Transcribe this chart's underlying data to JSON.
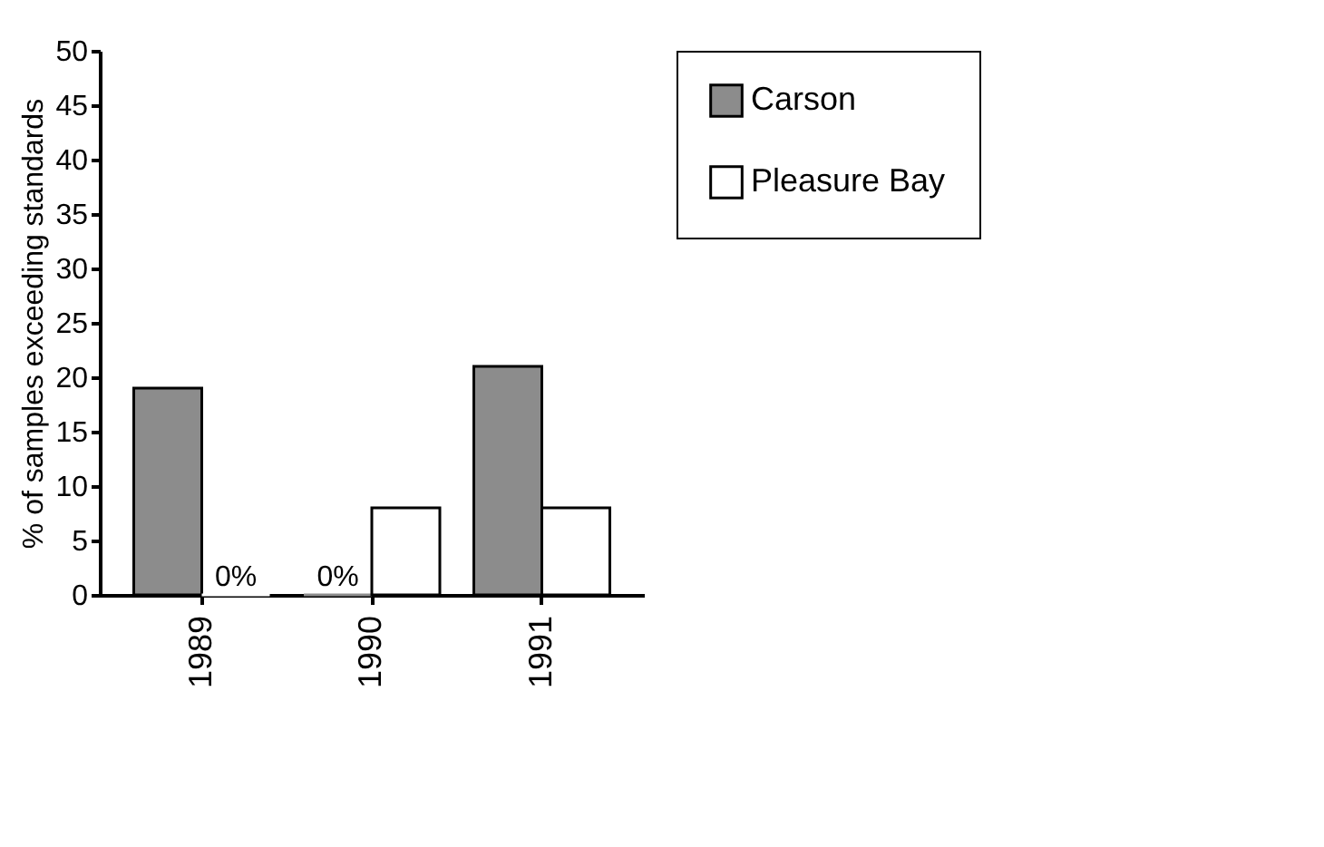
{
  "chart_data": {
    "type": "bar",
    "ylabel": "% of samples exceeding standards",
    "categories": [
      "1989",
      "1990",
      "1991"
    ],
    "series": [
      {
        "name": "Carson",
        "color": "#8c8c8c",
        "values": [
          19,
          0,
          21
        ],
        "value_labels": [
          null,
          "0%",
          null
        ]
      },
      {
        "name": "Pleasure Bay",
        "color": "#ffffff",
        "values": [
          0,
          8,
          8
        ],
        "value_labels": [
          "0%",
          null,
          null
        ]
      }
    ],
    "ylim": [
      0,
      50
    ],
    "yticks": [
      0,
      5,
      10,
      15,
      20,
      25,
      30,
      35,
      40,
      45,
      50
    ],
    "grid": false,
    "legend": "right"
  }
}
